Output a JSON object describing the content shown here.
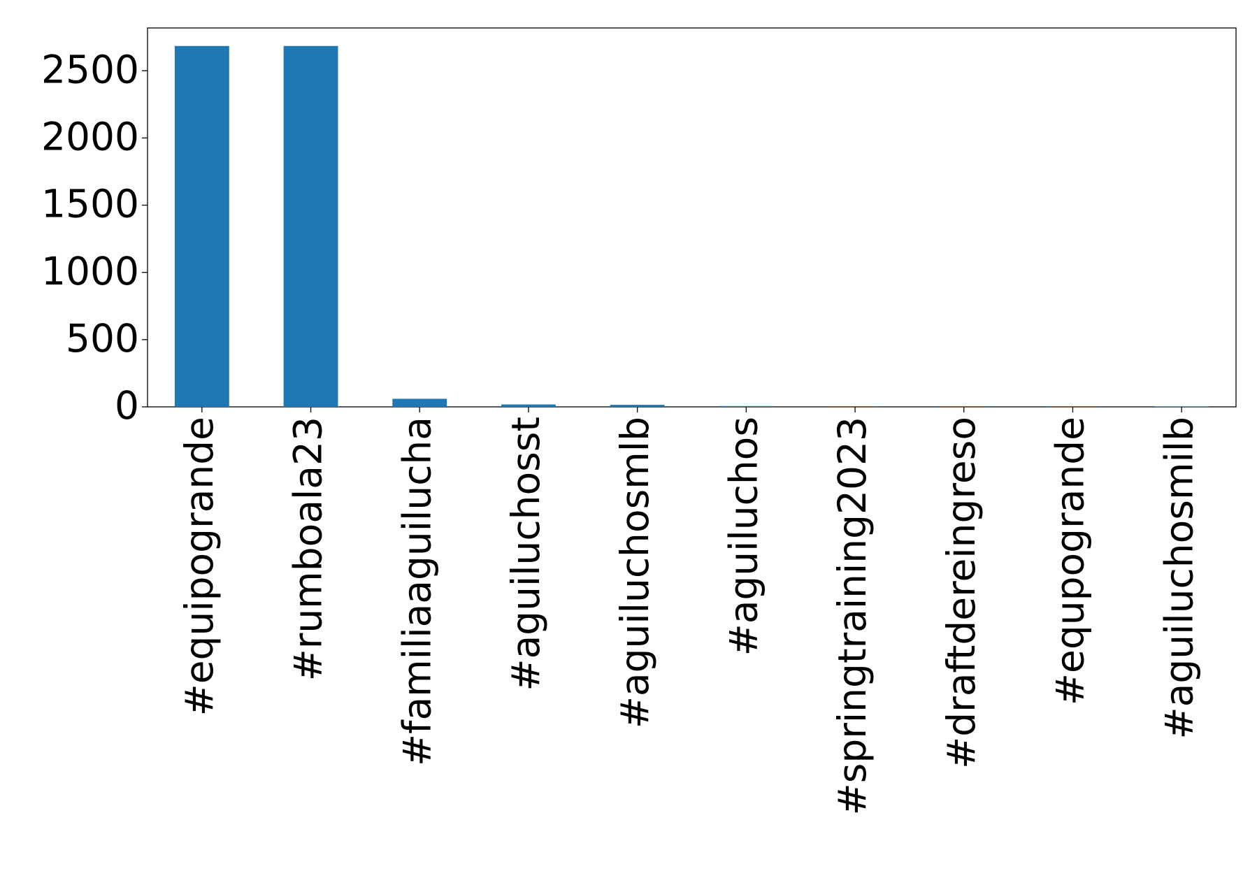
{
  "chart_data": {
    "type": "bar",
    "categories": [
      "#equipogrande",
      "#rumboala23",
      "#familiaaguilucha",
      "#aguiluchosst",
      "#aguiluchosmlb",
      "#aguiluchos",
      "#springtraining2023",
      "#draftdereingreso",
      "#equpogrande",
      "#aguiluchosmilb"
    ],
    "values": [
      2684,
      2684,
      60,
      18,
      15,
      6,
      5,
      5,
      5,
      3
    ],
    "color": "#1f77b4",
    "ylim": [
      0,
      2818
    ],
    "yticks": [
      0,
      500,
      1000,
      1500,
      2000,
      2500
    ],
    "grid": false
  }
}
